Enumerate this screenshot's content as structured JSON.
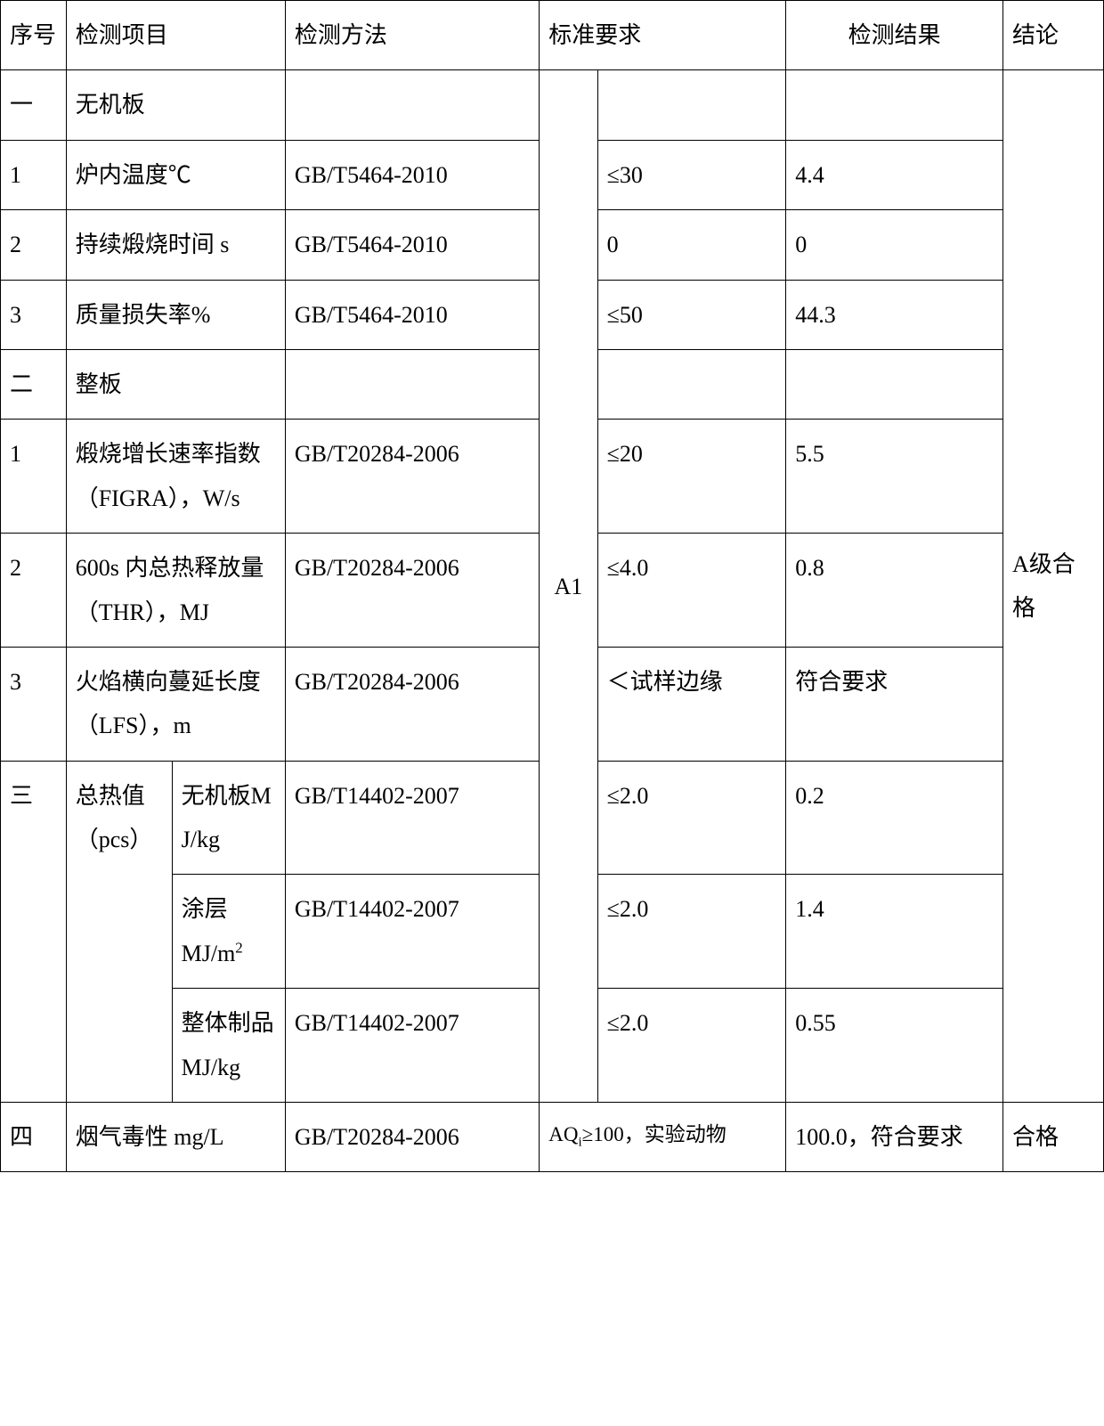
{
  "header": {
    "seq": "序号",
    "item": "检测项目",
    "method": "检测方法",
    "requirement": "标准要求",
    "result": "检测结果",
    "conclusion": "结论"
  },
  "sections": {
    "s1": {
      "num": "一",
      "title": "无机板"
    },
    "s2": {
      "num": "二",
      "title": "整板"
    },
    "s3": {
      "num": "三",
      "title_a": "总热值（pcs）",
      "sub1": "无机板MJ/kg",
      "sub2_a": "涂层",
      "sub2_b": "MJ/m",
      "sub2_sup": "2",
      "sub3": "整体制品MJ/kg"
    },
    "s4": {
      "num": "四",
      "title": "烟气毒性 mg/L"
    }
  },
  "rows": {
    "r1": {
      "n": "1",
      "item": "炉内温度℃",
      "method": "GB/T5464-2010",
      "req": "≤30",
      "res": "4.4"
    },
    "r2": {
      "n": "2",
      "item": "持续煅烧时间 s",
      "method": "GB/T5464-2010",
      "req": "0",
      "res": "0"
    },
    "r3": {
      "n": "3",
      "item": "质量损失率%",
      "method": "GB/T5464-2010",
      "req": "≤50",
      "res": "44.3"
    },
    "r4": {
      "n": "1",
      "item": "煅烧增长速率指数（FIGRA），W/s",
      "method": "GB/T20284-2006",
      "req": "≤20",
      "res": "5.5"
    },
    "r5": {
      "n": "2",
      "item": "600s 内总热释放量（THR），MJ",
      "method": "GB/T20284-2006",
      "req": "≤4.0",
      "res": "0.8"
    },
    "r6": {
      "n": "3",
      "item": "火焰横向蔓延长度（LFS），m",
      "method": "GB/T20284-2006",
      "req": "＜试样边缘",
      "res": "符合要求"
    },
    "r7": {
      "method": "GB/T14402-2007",
      "req": "≤2.0",
      "res": "0.2"
    },
    "r8": {
      "method": "GB/T14402-2007",
      "req": "≤2.0",
      "res": "1.4"
    },
    "r9": {
      "method": "GB/T14402-2007",
      "req": "≤2.0",
      "res": "0.55"
    },
    "r10": {
      "method": "GB/T20284-2006",
      "req_a": "AQ",
      "req_sub": "i",
      "req_b": "≥100，实验动物",
      "res": "100.0，符合要求"
    }
  },
  "merged": {
    "a1": "A1",
    "conc1": "A级合格",
    "conc2": "合格"
  },
  "style": {
    "border_color": "#000000",
    "text_color": "#000000",
    "bg_color": "#ffffff",
    "font_family": "SimSun",
    "base_fontsize": 26,
    "line_height": 1.9,
    "border_width": 1.5
  }
}
